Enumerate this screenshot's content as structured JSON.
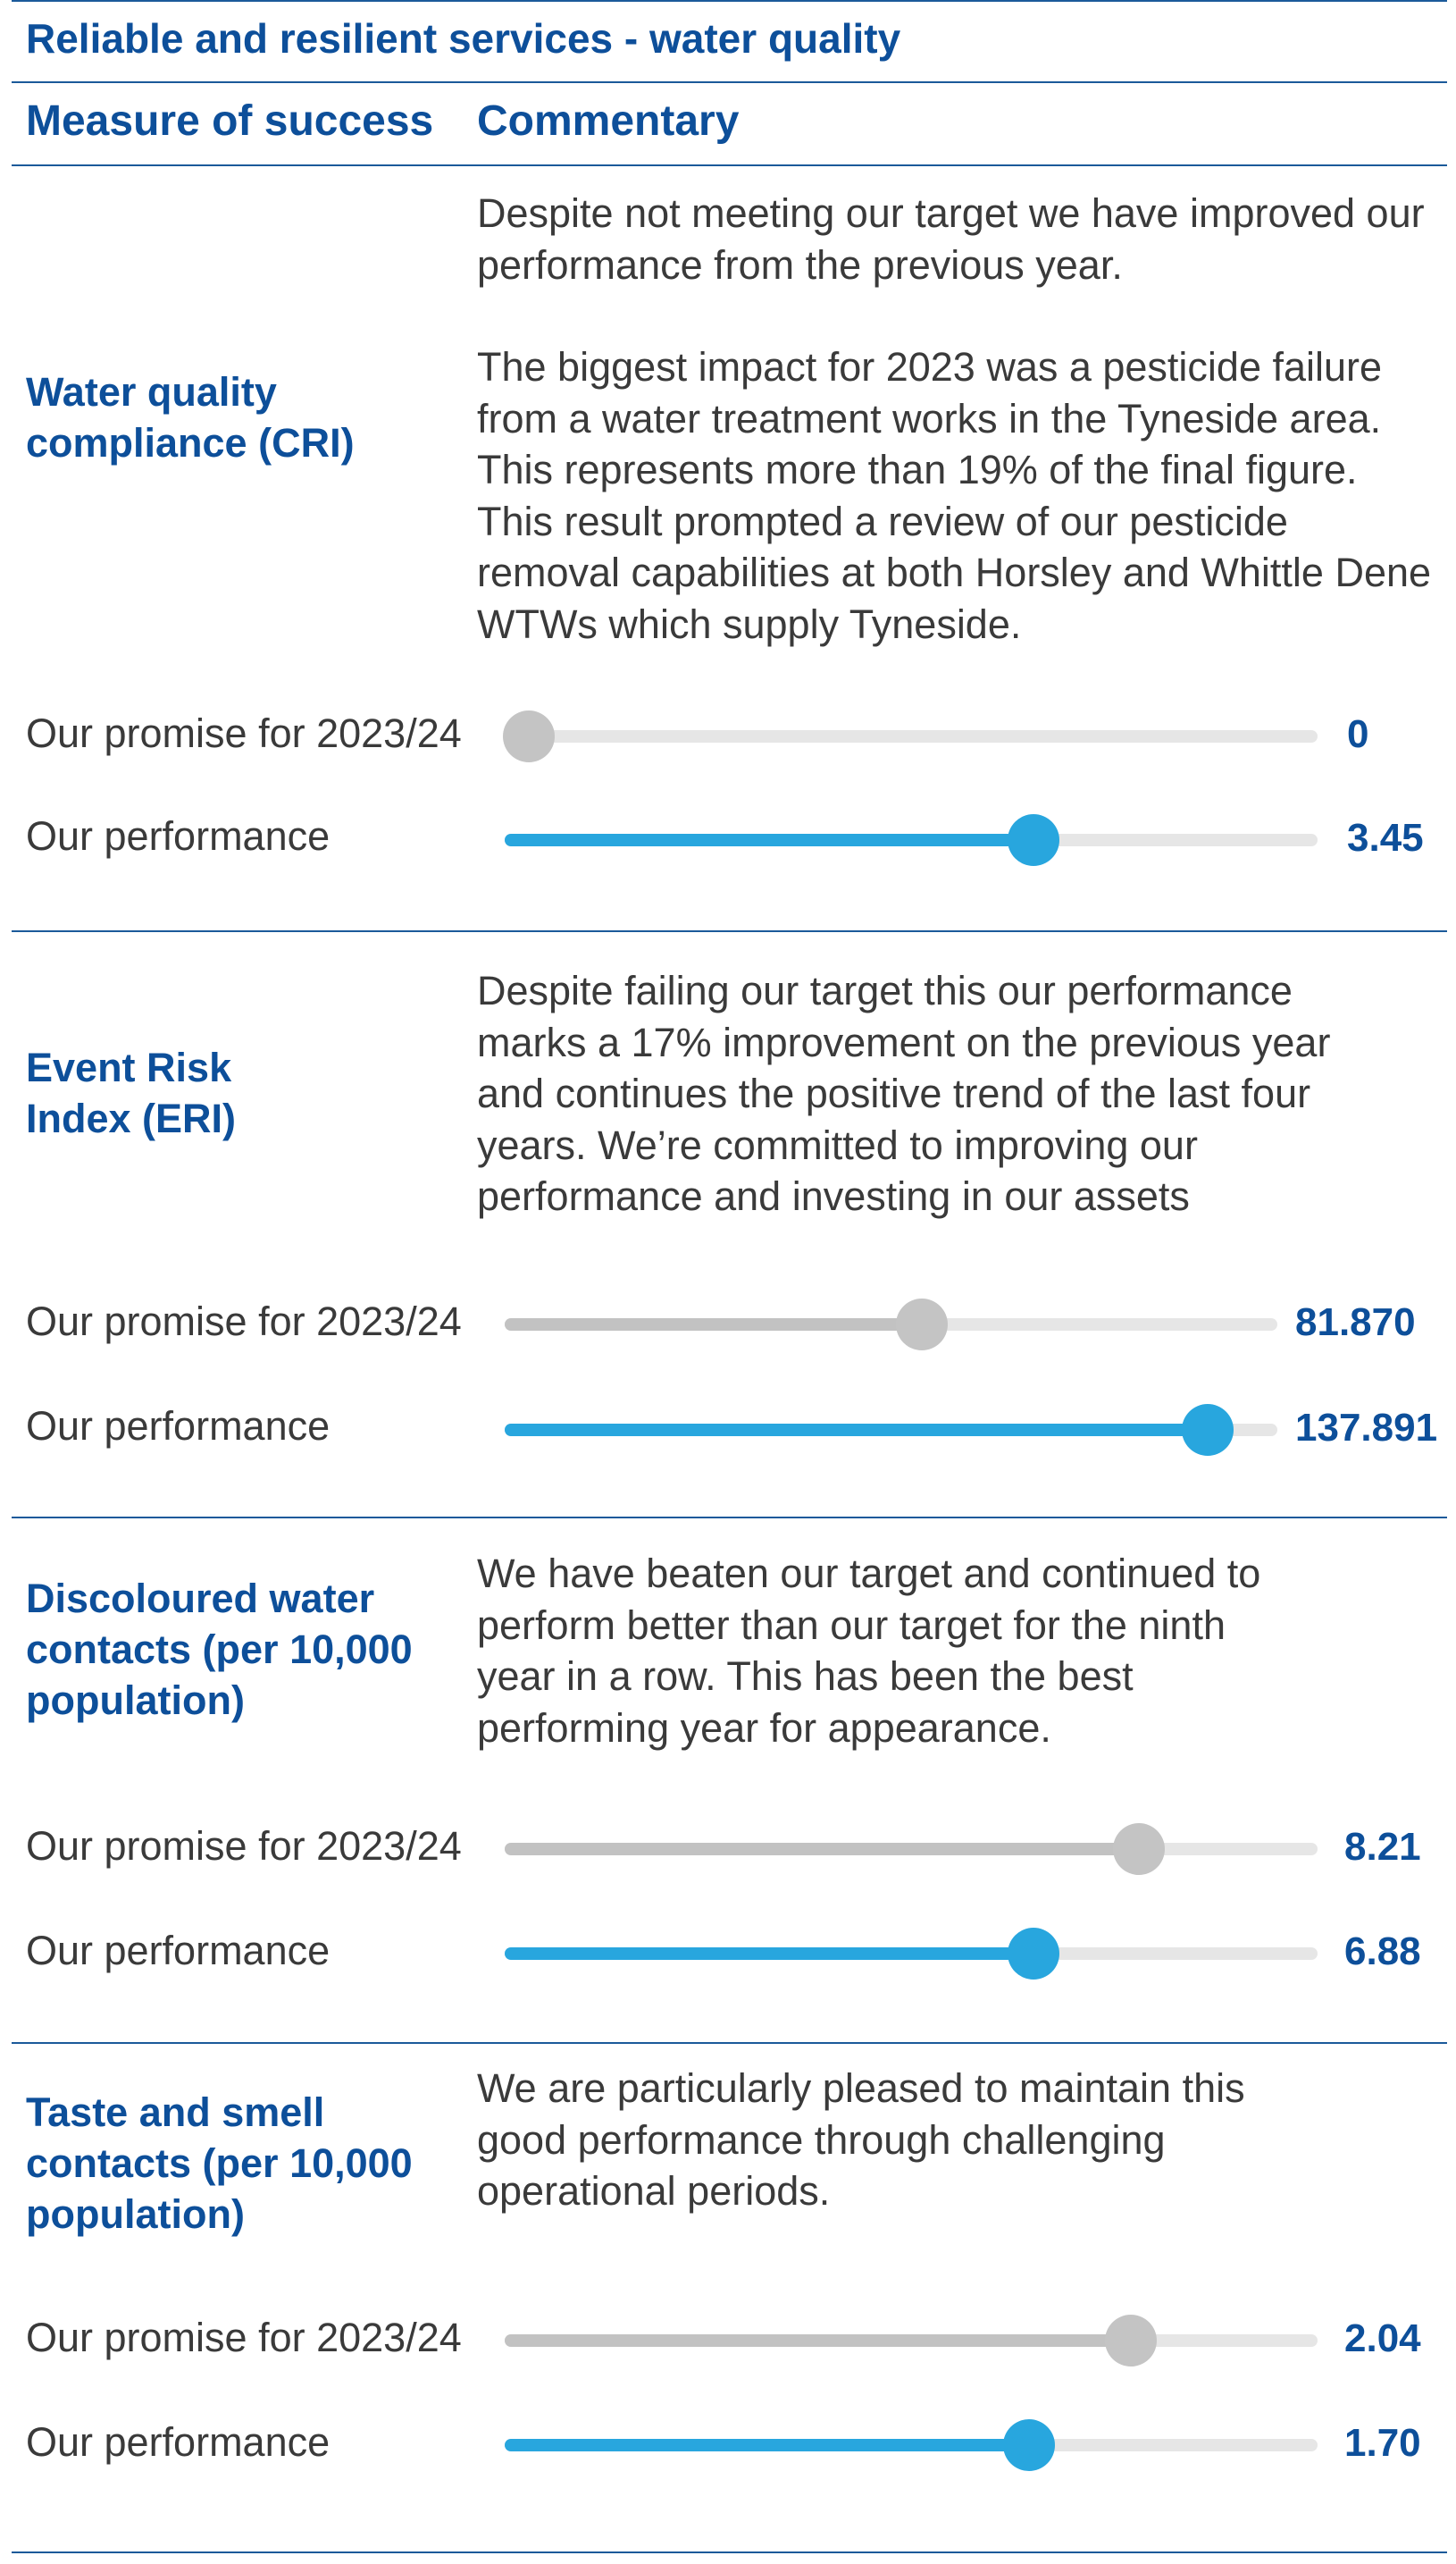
{
  "section_title": "Reliable and resilient services - water quality",
  "headers": {
    "measure": "Measure of success",
    "commentary": "Commentary"
  },
  "colors": {
    "accent": "#0d4f9a",
    "target": "#c4c4c4",
    "performance": "#28a6de"
  },
  "measures": [
    {
      "name": "Water quality compliance (CRI)",
      "commentary": [
        "Despite not meeting our target we have improved our performance from the previous year.",
        "The biggest impact for 2023 was a pesticide failure from a water treatment works in the Tyneside area. This represents more than 19% of the final figure. This result prompted a review of our pesticide removal capabilities at both Horsley and Whittle Dene WTWs which supply Tyneside."
      ],
      "promise": {
        "label": "Our promise for 2023/24",
        "value": "0",
        "level": 0.03
      },
      "performance": {
        "label": "Our performance",
        "value": "3.45",
        "level": 0.65
      }
    },
    {
      "name": "Event Risk Index (ERI)",
      "commentary": [
        "Despite failing our target this our performance marks a 17% improvement on the previous year and continues the positive trend of the last four years. We’re committed to improving our performance and investing in our assets"
      ],
      "promise": {
        "label": "Our promise for 2023/24",
        "value": "81.870",
        "level": 0.54
      },
      "performance": {
        "label": "Our performance",
        "value": "137.891",
        "level": 0.91
      }
    },
    {
      "name": "Discoloured water contacts (per 10,000 population)",
      "commentary": [
        "We have beaten our target and continued to perform better than our target for the ninth year in a row. This has been the best performing year for appearance."
      ],
      "promise": {
        "label": "Our promise for 2023/24",
        "value": "8.21",
        "level": 0.78
      },
      "performance": {
        "label": "Our performance",
        "value": "6.88",
        "level": 0.65
      }
    },
    {
      "name": "Taste and smell contacts (per 10,000 population)",
      "commentary": [
        "We are particularly pleased to maintain this good performance through challenging operational periods."
      ],
      "promise": {
        "label": "Our promise for 2023/24",
        "value": "2.04",
        "level": 0.77
      },
      "performance": {
        "label": "Our performance",
        "value": "1.70",
        "level": 0.645
      }
    }
  ]
}
